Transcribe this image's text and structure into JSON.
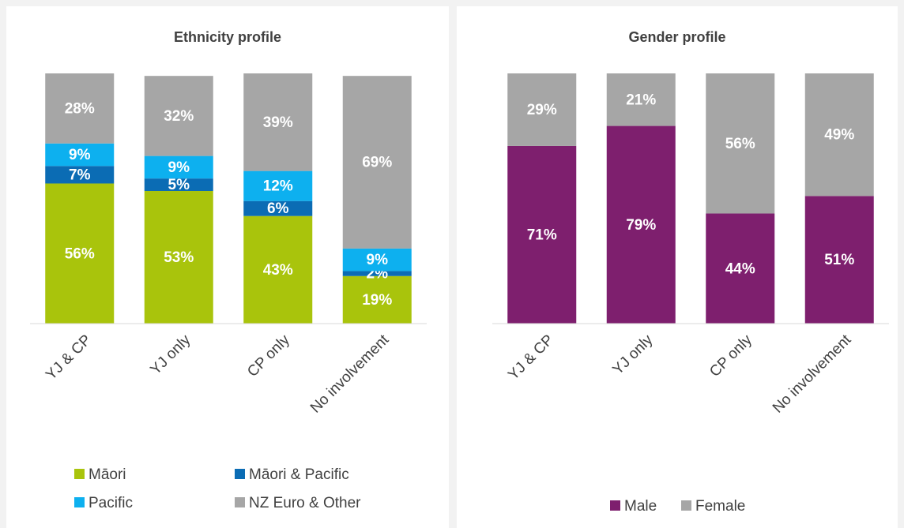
{
  "chart_data": [
    {
      "type": "stacked_bar",
      "title": "Ethnicity profile",
      "categories": [
        "YJ & CP",
        "YJ only",
        "CP only",
        "No involvement"
      ],
      "ylim": [
        0,
        100
      ],
      "legend": "bottom",
      "series": [
        {
          "name": "Māori",
          "color": "#a9c40c",
          "values": [
            56,
            53,
            43,
            19
          ],
          "value_labels": [
            "56%",
            "53%",
            "43%",
            "19%"
          ]
        },
        {
          "name": "Māori & Pacific",
          "color": "#0b6cb4",
          "values": [
            7,
            5,
            6,
            2
          ],
          "value_labels": [
            "7%",
            "5%",
            "6%",
            "2%"
          ]
        },
        {
          "name": "Pacific",
          "color": "#0db0ef",
          "values": [
            9,
            9,
            12,
            9
          ],
          "value_labels": [
            "9%",
            "9%",
            "12%",
            "9%"
          ]
        },
        {
          "name": "NZ Euro & Other",
          "color": "#a6a6a6",
          "values": [
            28,
            32,
            39,
            69
          ],
          "value_labels": [
            "28%",
            "32%",
            "39%",
            "69%"
          ]
        }
      ]
    },
    {
      "type": "stacked_bar",
      "title": "Gender profile",
      "categories": [
        "YJ & CP",
        "YJ only",
        "CP only",
        "No involvement"
      ],
      "ylim": [
        0,
        100
      ],
      "legend": "bottom",
      "series": [
        {
          "name": "Male",
          "color": "#7e1f6e",
          "values": [
            71,
            79,
            44,
            51
          ],
          "value_labels": [
            "71%",
            "79%",
            "44%",
            "51%"
          ]
        },
        {
          "name": "Female",
          "color": "#a6a6a6",
          "values": [
            29,
            21,
            56,
            49
          ],
          "value_labels": [
            "29%",
            "21%",
            "56%",
            "49%"
          ]
        }
      ]
    }
  ]
}
